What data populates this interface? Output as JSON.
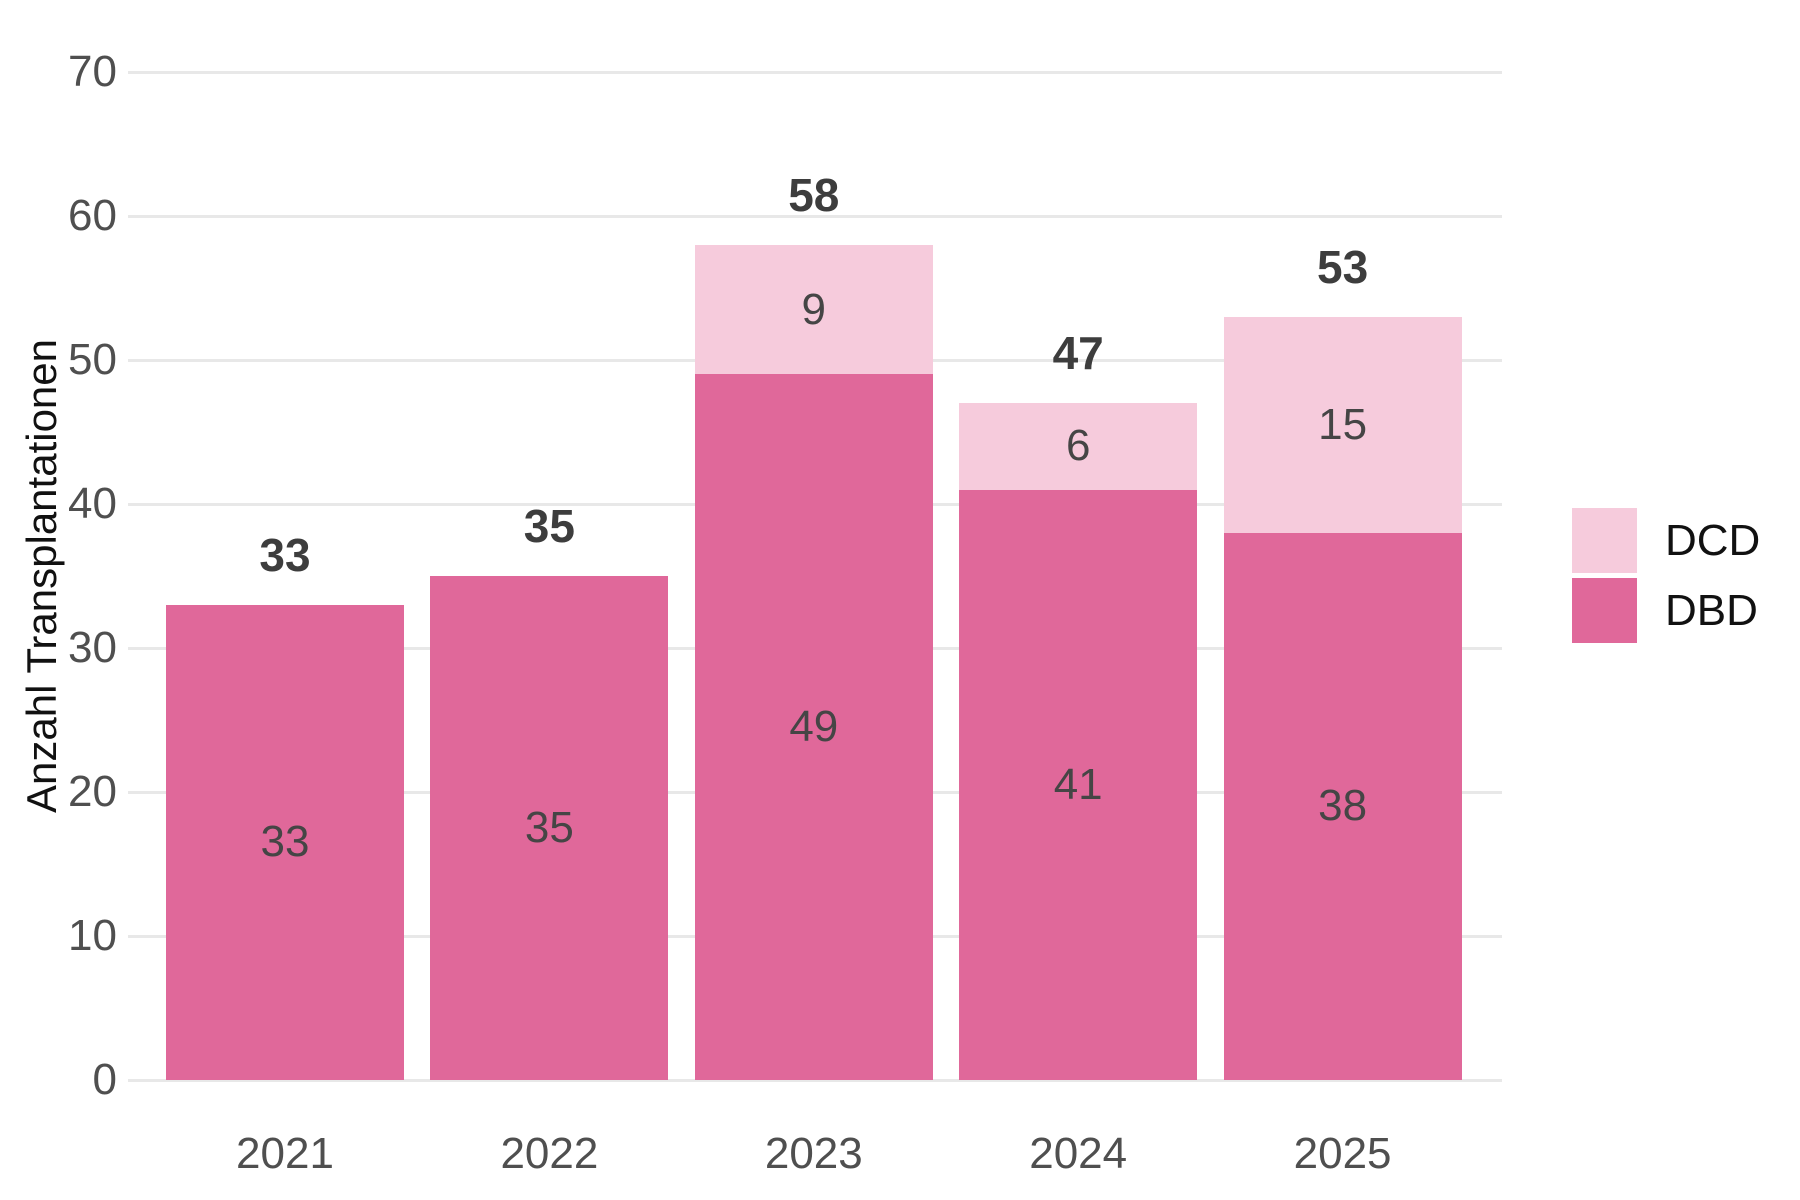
{
  "chart_data": {
    "type": "bar",
    "stacked": true,
    "title": "",
    "xlabel": "",
    "ylabel": "Anzahl Transplantationen",
    "categories": [
      "2021",
      "2022",
      "2023",
      "2024",
      "2025"
    ],
    "series": [
      {
        "name": "DBD",
        "color": "#e0689a",
        "values": [
          33,
          35,
          49,
          41,
          38
        ]
      },
      {
        "name": "DCD",
        "color": "#f6cbdc",
        "values": [
          0,
          0,
          9,
          6,
          15
        ]
      }
    ],
    "totals": [
      33,
      35,
      58,
      47,
      53
    ],
    "ylim": [
      0,
      70
    ],
    "yticks": [
      0,
      10,
      20,
      30,
      40,
      50,
      60,
      70
    ],
    "grid": true,
    "legend": [
      "DCD",
      "DBD"
    ],
    "legend_position": "right"
  },
  "colors": {
    "dbd": "#e0689a",
    "dcd": "#f6cbdc",
    "gridline": "#e8e8e8",
    "axis_text": "#4f4f4f",
    "bar_label": "#454545",
    "total_label": "#3d3d3d",
    "background": "#ffffff"
  }
}
